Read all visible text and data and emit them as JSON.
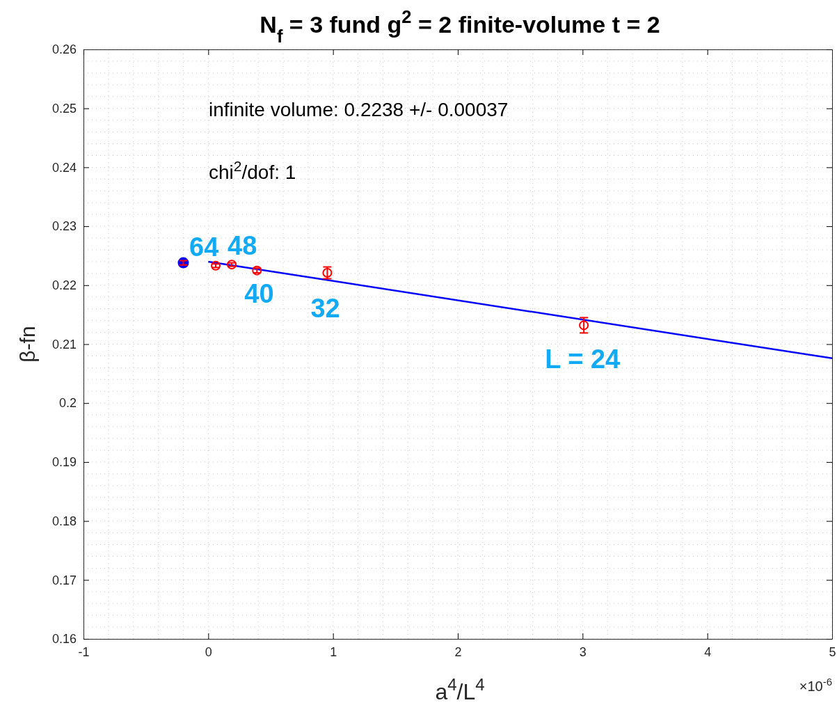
{
  "chart_data": {
    "type": "scatter",
    "title": "N$_{f}$ = 3 fund    g$^{2}$ = 2   finite-volume   t = 2",
    "xlabel": "a$^{4}$/L$^{4}$",
    "ylabel": "β-fn",
    "xlim": [
      -1,
      5
    ],
    "xticks": [
      -1,
      0,
      1,
      2,
      3,
      4,
      5
    ],
    "ylim": [
      0.16,
      0.26
    ],
    "yticks": [
      0.16,
      0.17,
      0.18,
      0.19,
      0.2,
      0.21,
      0.22,
      0.23,
      0.24,
      0.25,
      0.26
    ],
    "grid": true,
    "series": [
      {
        "type": "line",
        "color": "#0000ff",
        "x": [
          0,
          5
        ],
        "values": [
          0.224,
          0.2076
        ]
      },
      {
        "color": "#ff0000",
        "x": [
          0.0596,
          0.188,
          0.39,
          0.954,
          3.01
        ],
        "values": [
          0.2233,
          0.2235,
          0.2225,
          0.2221,
          0.2132
        ],
        "errors": [
          0.0003,
          0.0003,
          0.0004,
          0.001,
          0.0013
        ],
        "marker": "circle"
      },
      {
        "color": "#0000ff",
        "x": [
          -0.2
        ],
        "values": [
          0.2238
        ],
        "errors": [
          0.00037
        ],
        "marker": "circle"
      }
    ],
    "annotations": [
      "infinite volume: 0.2238 +/- 0.00037",
      "chi$^{2}$/dof: 1",
      "×10$^{-6}$",
      {
        "text": "64",
        "x": 0.0596,
        "y": 0.2233
      },
      {
        "text": "48",
        "x": 0.188,
        "y": 0.2235
      },
      {
        "text": "40",
        "x": 0.39,
        "y": 0.2225
      },
      {
        "text": "32",
        "x": 0.954,
        "y": 0.2221
      },
      {
        "text": "L = 24",
        "x": 3.01,
        "y": 0.2132
      }
    ]
  }
}
